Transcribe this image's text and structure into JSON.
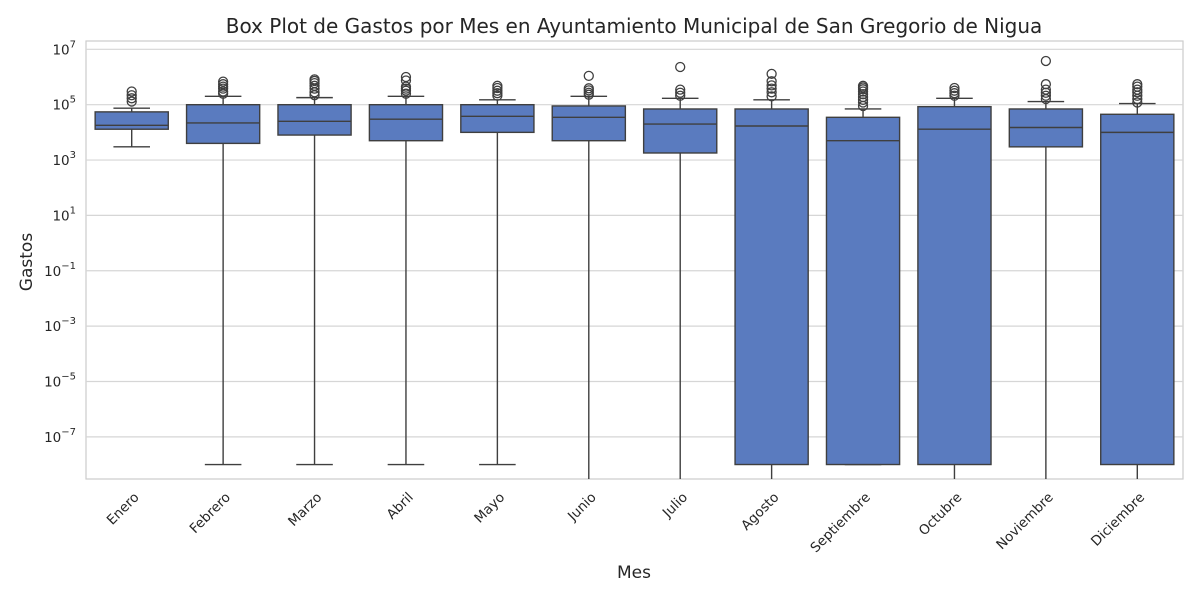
{
  "chart_data": {
    "type": "box",
    "title": "Box Plot de Gastos por Mes en Ayuntamiento Municipal de San Gregorio de Nigua",
    "xlabel": "Mes",
    "ylabel": "Gastos",
    "y_scale": "log",
    "ylim": [
      3e-09,
      20000000
    ],
    "y_ticks": [
      {
        "value": 10000000,
        "base": "10",
        "exp": "7"
      },
      {
        "value": 100000,
        "base": "10",
        "exp": "5"
      },
      {
        "value": 1000,
        "base": "10",
        "exp": "3"
      },
      {
        "value": 10,
        "base": "10",
        "exp": "1"
      },
      {
        "value": 0.1,
        "base": "10",
        "exp": "−1"
      },
      {
        "value": 0.001,
        "base": "10",
        "exp": "−3"
      },
      {
        "value": 1e-05,
        "base": "10",
        "exp": "−5"
      },
      {
        "value": 1e-07,
        "base": "10",
        "exp": "−7"
      }
    ],
    "grid": true,
    "box_color": "#5a7bbf",
    "line_color": "#3f3f3f",
    "categories": [
      "Enero",
      "Febrero",
      "Marzo",
      "Abril",
      "Mayo",
      "Junio",
      "Julio",
      "Agosto",
      "Septiembre",
      "Octubre",
      "Noviembre",
      "Diciembre"
    ],
    "boxes": [
      {
        "label": "Enero",
        "whisker_low": 3000,
        "q1": 13000,
        "median": 18000,
        "q3": 55000,
        "whisker_high": 75000,
        "outliers": [
          130000,
          170000,
          220000,
          300000
        ]
      },
      {
        "label": "Febrero",
        "whisker_low": 1e-08,
        "q1": 4000,
        "median": 22000,
        "q3": 100000,
        "whisker_high": 200000,
        "outliers": [
          250000,
          300000,
          380000,
          450000,
          550000,
          680000
        ]
      },
      {
        "label": "Marzo",
        "whisker_low": 1e-08,
        "q1": 8000,
        "median": 25000,
        "q3": 100000,
        "whisker_high": 180000,
        "outliers": [
          220000,
          280000,
          380000,
          480000,
          600000,
          720000,
          820000
        ]
      },
      {
        "label": "Abril",
        "whisker_low": 1e-08,
        "q1": 5000,
        "median": 30000,
        "q3": 100000,
        "whisker_high": 200000,
        "outliers": [
          250000,
          320000,
          380000,
          450000,
          750000,
          1000000
        ]
      },
      {
        "label": "Mayo",
        "whisker_low": 1e-08,
        "q1": 10000,
        "median": 38000,
        "q3": 100000,
        "whisker_high": 150000,
        "outliers": [
          210000,
          260000,
          320000,
          400000,
          480000
        ]
      },
      {
        "label": "Junio",
        "whisker_low": 1e-09,
        "q1": 5000,
        "median": 35000,
        "q3": 90000,
        "whisker_high": 200000,
        "outliers": [
          230000,
          270000,
          330000,
          390000,
          1100000
        ]
      },
      {
        "label": "Julio",
        "whisker_low": 1e-09,
        "q1": 1800,
        "median": 20000,
        "q3": 70000,
        "whisker_high": 170000,
        "outliers": [
          210000,
          270000,
          350000,
          2300000
        ]
      },
      {
        "label": "Agosto",
        "whisker_low": 1e-09,
        "q1": 1e-08,
        "median": 17000,
        "q3": 70000,
        "whisker_high": 150000,
        "outliers": [
          200000,
          280000,
          380000,
          500000,
          700000,
          1300000
        ]
      },
      {
        "label": "Septiembre",
        "whisker_low": 1e-08,
        "q1": 1e-08,
        "median": 5000,
        "q3": 35000,
        "whisker_high": 70000,
        "outliers": [
          90000,
          120000,
          150000,
          190000,
          240000,
          300000,
          360000,
          420000,
          480000
        ]
      },
      {
        "label": "Octubre",
        "whisker_low": 1e-09,
        "q1": 1e-08,
        "median": 13000,
        "q3": 85000,
        "whisker_high": 170000,
        "outliers": [
          210000,
          260000,
          320000,
          400000
        ]
      },
      {
        "label": "Noviembre",
        "whisker_low": 1e-09,
        "q1": 3000,
        "median": 15000,
        "q3": 70000,
        "whisker_high": 130000,
        "outliers": [
          160000,
          210000,
          270000,
          350000,
          550000,
          3800000
        ]
      },
      {
        "label": "Diciembre",
        "whisker_low": 1e-09,
        "q1": 1e-08,
        "median": 10000,
        "q3": 45000,
        "whisker_high": 110000,
        "outliers": [
          120000,
          160000,
          210000,
          280000,
          350000,
          450000,
          550000
        ]
      }
    ]
  }
}
